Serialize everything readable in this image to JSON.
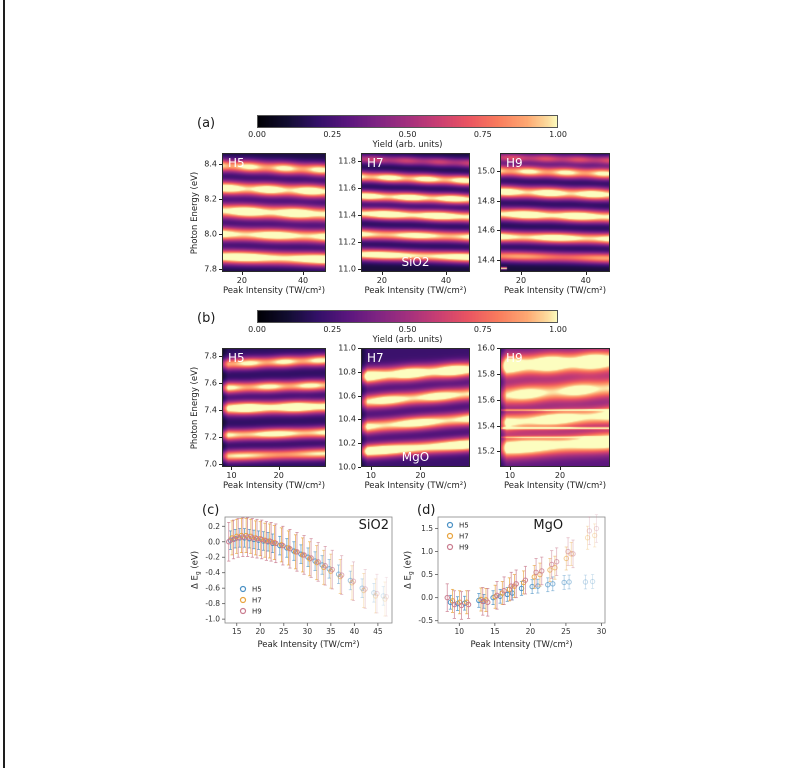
{
  "figure": {
    "background": "#ffffff",
    "panel_labels": {
      "a": "(a)",
      "b": "(b)",
      "c": "(c)",
      "d": "(d)"
    },
    "colorbar": {
      "ticks": [
        "0.00",
        "0.25",
        "0.50",
        "0.75",
        "1.00"
      ],
      "label": "Yield (arb. units)"
    },
    "series_colors": {
      "H5": "#4a90c4",
      "H7": "#e8a33d",
      "H9": "#c97b8e"
    }
  },
  "chart_data": [
    {
      "id": "a_h5",
      "type": "heatmap",
      "panel": "a",
      "harmonic_label": "H5",
      "material_label": "",
      "xlabel": "Peak Intensity (TW/cm²)",
      "ylabel": "Photon Energy (eV)",
      "show_ylabel": true,
      "xlim": [
        13.5,
        47.5
      ],
      "ylim": [
        7.78,
        8.46
      ],
      "x_ticks": [
        20,
        40
      ],
      "y_ticks": [
        7.8,
        8.0,
        8.2,
        8.4
      ],
      "colormap": "magma",
      "background_level": 0.13,
      "left_dark": false,
      "bands": [
        [
          7.86,
          0.028,
          1.0,
          -0.015
        ],
        [
          7.99,
          0.028,
          0.95,
          -0.015
        ],
        [
          8.12,
          0.03,
          1.0,
          -0.02
        ],
        [
          8.25,
          0.028,
          0.95,
          -0.02
        ],
        [
          8.375,
          0.026,
          0.85,
          -0.025
        ]
      ],
      "hlines": []
    },
    {
      "id": "a_h7",
      "type": "heatmap",
      "panel": "a",
      "harmonic_label": "H7",
      "material_label": "SiO2",
      "xlabel": "Peak Intensity (TW/cm²)",
      "ylabel": "Photon Energy (eV)",
      "show_ylabel": false,
      "xlim": [
        13.5,
        47.5
      ],
      "ylim": [
        10.98,
        11.86
      ],
      "x_ticks": [
        20,
        40
      ],
      "y_ticks": [
        11.0,
        11.2,
        11.4,
        11.6,
        11.8
      ],
      "colormap": "magma",
      "background_level": 0.12,
      "left_dark": false,
      "bands": [
        [
          11.1,
          0.03,
          0.95,
          -0.02
        ],
        [
          11.25,
          0.03,
          0.9,
          -0.02
        ],
        [
          11.4,
          0.03,
          1.0,
          -0.025
        ],
        [
          11.53,
          0.028,
          0.95,
          -0.025
        ],
        [
          11.67,
          0.028,
          0.9,
          -0.03
        ],
        [
          11.8,
          0.024,
          0.45,
          -0.03
        ]
      ],
      "hlines": []
    },
    {
      "id": "a_h9",
      "type": "heatmap",
      "panel": "a",
      "harmonic_label": "H9",
      "material_label": "",
      "xlabel": "Peak Intensity (TW/cm²)",
      "ylabel": "Photon Energy (eV)",
      "show_ylabel": false,
      "xlim": [
        13.5,
        47.5
      ],
      "ylim": [
        14.32,
        15.12
      ],
      "x_ticks": [
        20,
        40
      ],
      "y_ticks": [
        14.4,
        14.6,
        14.8,
        15.0
      ],
      "colormap": "magma",
      "background_level": 0.12,
      "left_dark": false,
      "bands": [
        [
          14.42,
          0.026,
          0.7,
          -0.015
        ],
        [
          14.55,
          0.028,
          0.95,
          -0.015
        ],
        [
          14.7,
          0.03,
          1.0,
          -0.02
        ],
        [
          14.85,
          0.03,
          0.95,
          -0.02
        ],
        [
          14.99,
          0.028,
          0.85,
          -0.02
        ],
        [
          15.08,
          0.022,
          0.5,
          -0.02
        ]
      ],
      "hlines": [
        [
          14.345,
          0.9,
          0.005,
          0.06
        ]
      ]
    },
    {
      "id": "b_h5",
      "type": "heatmap",
      "panel": "b",
      "harmonic_label": "H5",
      "material_label": "",
      "xlabel": "Peak Intensity (TW/cm²)",
      "ylabel": "Photon Energy (eV)",
      "show_ylabel": true,
      "xlim": [
        8,
        30
      ],
      "ylim": [
        6.98,
        7.86
      ],
      "x_ticks": [
        10,
        20
      ],
      "y_ticks": [
        7.0,
        7.2,
        7.4,
        7.6,
        7.8
      ],
      "colormap": "magma",
      "background_level": 0.18,
      "left_dark": true,
      "bands": [
        [
          7.07,
          0.03,
          0.75,
          0.02
        ],
        [
          7.225,
          0.03,
          0.85,
          0.02
        ],
        [
          7.42,
          0.034,
          1.0,
          0.015
        ],
        [
          7.575,
          0.03,
          0.8,
          0.02
        ],
        [
          7.755,
          0.03,
          0.8,
          0.03
        ]
      ],
      "hlines": []
    },
    {
      "id": "b_h7",
      "type": "heatmap",
      "panel": "b",
      "harmonic_label": "H7",
      "material_label": "MgO",
      "xlabel": "Peak Intensity (TW/cm²)",
      "ylabel": "Photon Energy (eV)",
      "show_ylabel": false,
      "xlim": [
        8,
        30
      ],
      "ylim": [
        10.0,
        11.0
      ],
      "x_ticks": [
        10,
        20
      ],
      "y_ticks": [
        10.0,
        10.2,
        10.4,
        10.6,
        10.8,
        11.0
      ],
      "colormap": "magma",
      "background_level": 0.22,
      "left_dark": true,
      "bands": [
        [
          10.16,
          0.04,
          0.95,
          0.06
        ],
        [
          10.37,
          0.042,
          0.85,
          0.07
        ],
        [
          10.58,
          0.042,
          0.85,
          0.07
        ],
        [
          10.79,
          0.045,
          0.95,
          0.06
        ]
      ],
      "hlines": []
    },
    {
      "id": "b_h9",
      "type": "heatmap",
      "panel": "b",
      "harmonic_label": "H9",
      "material_label": "",
      "xlabel": "Peak Intensity (TW/cm²)",
      "ylabel": "Photon Energy (eV)",
      "show_ylabel": false,
      "xlim": [
        8,
        30
      ],
      "ylim": [
        15.08,
        16.0
      ],
      "x_ticks": [
        10,
        20
      ],
      "y_ticks": [
        15.2,
        15.4,
        15.6,
        15.8,
        16.0
      ],
      "colormap": "magma",
      "background_level": 0.3,
      "left_dark": true,
      "bands": [
        [
          15.25,
          0.055,
          0.85,
          0.05
        ],
        [
          15.45,
          0.05,
          0.8,
          0.06
        ],
        [
          15.66,
          0.055,
          0.75,
          0.06
        ],
        [
          15.88,
          0.06,
          0.9,
          0.04
        ]
      ],
      "hlines": [
        [
          15.38,
          0.55,
          0.006,
          1
        ],
        [
          15.52,
          0.45,
          0.005,
          1
        ],
        [
          15.31,
          0.3,
          0.005,
          1
        ]
      ]
    },
    {
      "id": "c",
      "type": "scatter",
      "panel": "c",
      "title": "SiO2",
      "xlabel": "Peak Intensity (TW/cm²)",
      "ylabel_parts": [
        "Δ E",
        "g",
        " (eV)"
      ],
      "xlim": [
        12.5,
        48
      ],
      "ylim": [
        -1.05,
        0.32
      ],
      "x_ticks": [
        15,
        20,
        25,
        30,
        35,
        40,
        45
      ],
      "y_ticks": [
        0.2,
        0.0,
        -0.2,
        -0.4,
        -0.6,
        -0.8,
        -1.0
      ],
      "legend": {
        "position": "lower-left",
        "items": [
          "H5",
          "H7",
          "H9"
        ]
      },
      "fade": {
        "start": 28,
        "end": 47,
        "min": 0.18
      },
      "series": [
        {
          "name": "H5",
          "color": "#4a90c4",
          "dx": -0.35,
          "yerr": 0.12,
          "x": [
            14,
            15,
            16,
            17,
            18,
            19,
            20,
            21,
            22,
            23,
            24.5,
            26,
            27.5,
            29,
            30.5,
            32,
            33.5,
            35,
            37,
            39.5,
            42,
            44.5,
            46.5
          ],
          "y": [
            0.02,
            0.04,
            0.05,
            0.05,
            0.04,
            0.03,
            0.02,
            0.01,
            0,
            -0.02,
            -0.05,
            -0.08,
            -0.12,
            -0.16,
            -0.2,
            -0.25,
            -0.3,
            -0.35,
            -0.42,
            -0.5,
            -0.6,
            -0.66,
            -0.7
          ]
        },
        {
          "name": "H7",
          "color": "#e8a33d",
          "dx": 0,
          "yerr": 0.22,
          "x": [
            14,
            15,
            16,
            17,
            18,
            19,
            20,
            21,
            22,
            23,
            24.5,
            26,
            27.5,
            29,
            30.5,
            32,
            33.5,
            35,
            37,
            39.5,
            42,
            44.5,
            46.5
          ],
          "y": [
            0.05,
            0.07,
            0.08,
            0.08,
            0.07,
            0.05,
            0.04,
            0.02,
            0.01,
            -0.01,
            -0.04,
            -0.08,
            -0.13,
            -0.17,
            -0.22,
            -0.27,
            -0.33,
            -0.38,
            -0.45,
            -0.53,
            -0.63,
            -0.7,
            -0.74
          ]
        },
        {
          "name": "H9",
          "color": "#c97b8e",
          "dx": 0.3,
          "yerr": 0.25,
          "x": [
            13,
            14,
            15,
            16,
            17,
            18,
            19,
            20,
            21,
            22,
            23,
            24.5,
            26,
            27.5,
            29,
            30.5,
            32,
            33.5,
            35,
            37,
            39.5,
            42,
            44.5,
            46.5
          ],
          "y": [
            0,
            0.03,
            0.05,
            0.06,
            0.06,
            0.05,
            0.04,
            0.03,
            0.01,
            0,
            -0.02,
            -0.05,
            -0.09,
            -0.13,
            -0.17,
            -0.21,
            -0.26,
            -0.31,
            -0.36,
            -0.43,
            -0.51,
            -0.61,
            -0.67,
            -0.71
          ]
        }
      ]
    },
    {
      "id": "d",
      "type": "scatter",
      "panel": "d",
      "title": "MgO",
      "xlabel": "Peak Intensity (TW/cm²)",
      "ylabel_parts": [
        "Δ E",
        "g",
        " (eV)"
      ],
      "xlim": [
        7,
        30.5
      ],
      "ylim": [
        -0.55,
        1.75
      ],
      "x_ticks": [
        10,
        15,
        20,
        25,
        30
      ],
      "y_ticks": [
        -0.5,
        0.0,
        0.5,
        1.0,
        1.5
      ],
      "legend": {
        "position": "upper-left",
        "items": [
          "H5",
          "H7",
          "H9"
        ]
      },
      "fade": {
        "start": 18,
        "end": 29.5,
        "min": 0.25
      },
      "series": [
        {
          "name": "H5",
          "color": "#4a90c4",
          "dx": -0.25,
          "yerr": 0.15,
          "x": [
            9,
            10,
            11,
            13,
            13.7,
            15,
            16,
            17,
            17.7,
            19,
            20.5,
            21.3,
            22.7,
            23.4,
            25,
            25.7,
            28,
            29
          ],
          "y": [
            -0.1,
            -0.13,
            -0.12,
            -0.06,
            -0.08,
            0,
            0.03,
            0.07,
            0.1,
            0.2,
            0.24,
            0.25,
            0.28,
            0.3,
            0.33,
            0.34,
            0.34,
            0.35
          ]
        },
        {
          "name": "H7",
          "color": "#e8a33d",
          "dx": 0.05,
          "yerr": 0.25,
          "x": [
            9,
            10,
            11,
            13,
            13.7,
            15,
            16,
            17,
            17.7,
            19,
            20.5,
            21.3,
            22.7,
            23.4,
            25,
            25.7,
            28,
            29
          ],
          "y": [
            -0.07,
            -0.1,
            -0.1,
            -0.04,
            -0.05,
            0.02,
            0.1,
            0.18,
            0.25,
            0.33,
            0.45,
            0.5,
            0.6,
            0.65,
            0.85,
            0.95,
            1.3,
            1.35
          ]
        },
        {
          "name": "H9",
          "color": "#c97b8e",
          "dx": 0.3,
          "yerr": 0.3,
          "x": [
            8,
            9,
            10,
            11,
            13,
            13.7,
            15,
            16,
            17,
            17.7,
            19,
            20.5,
            21.3,
            22.7,
            23.4,
            25,
            25.7,
            28,
            29
          ],
          "y": [
            0,
            -0.15,
            -0.17,
            -0.15,
            -0.08,
            -0.1,
            0.05,
            0.15,
            0.25,
            0.3,
            0.38,
            0.55,
            0.58,
            0.72,
            0.78,
            1.0,
            0.95,
            1.45,
            1.5
          ]
        }
      ]
    }
  ]
}
